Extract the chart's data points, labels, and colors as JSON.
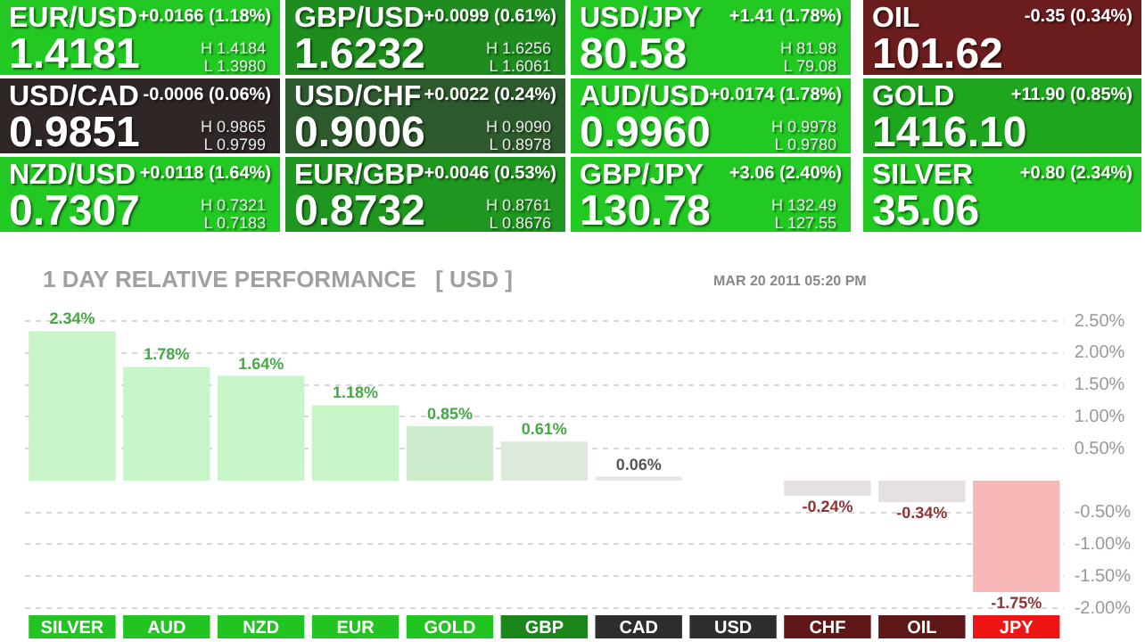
{
  "chart_data": [
    {
      "type": "other",
      "categories": [
        "EUR/USD",
        "GBP/USD",
        "USD/JPY",
        "OIL",
        "USD/CAD",
        "USD/CHF",
        "AUD/USD",
        "GOLD",
        "NZD/USD",
        "EUR/GBP",
        "GBP/JPY",
        "SILVER"
      ],
      "value_labels": [
        "1.4181",
        "1.6232",
        "80.58",
        "101.62",
        "0.9851",
        "0.9006",
        "0.9960",
        "1416.10",
        "0.7307",
        "0.8732",
        "130.78",
        "35.06"
      ],
      "colors": [
        "#22c922",
        "#1e8c1e",
        "#22c922",
        "#6b1c1c",
        "#2f2626",
        "#2d5a2d",
        "#22c922",
        "#1fa61f",
        "#22c922",
        "#1f961f",
        "#22c922",
        "#22c922"
      ],
      "annotations": [
        "+0.0166 (1.18%)",
        "H 1.4184",
        "L 1.3980",
        "+0.0099 (0.61%)",
        "H 1.6256",
        "L 1.6061",
        "+1.41 (1.78%)",
        "H 81.98",
        "L 79.08",
        "-0.35 (0.34%)",
        "-0.0006 (0.06%)",
        "H 0.9865",
        "L 0.9799",
        "+0.0022 (0.24%)",
        "H 0.9090",
        "L 0.8978",
        "+0.0174 (1.78%)",
        "H 0.9978",
        "L 0.9780",
        "+11.90 (0.85%)",
        "+0.0118 (1.64%)",
        "H 0.7321",
        "L 0.7183",
        "+0.0046 (0.53%)",
        "H 0.8761",
        "L 0.8676",
        "+3.06 (2.40%)",
        "H 132.49",
        "L 127.55",
        "+0.80 (2.34%)"
      ]
    },
    {
      "type": "bar",
      "title": "1 DAY RELATIVE PERFORMANCE   [ USD ]",
      "annotations": [
        "MAR 20 2011 05:20 PM"
      ],
      "categories": [
        "SILVER",
        "AUD",
        "NZD",
        "EUR",
        "GOLD",
        "GBP",
        "CAD",
        "USD",
        "CHF",
        "OIL",
        "JPY"
      ],
      "values": [
        2.34,
        1.78,
        1.64,
        1.18,
        0.85,
        0.61,
        0.06,
        0,
        -0.24,
        -0.34,
        -1.75
      ],
      "value_labels": [
        "2.34%",
        "1.78%",
        "1.64%",
        "1.18%",
        "0.85%",
        "0.61%",
        "0.06%",
        null,
        "-0.24%",
        "-0.34%",
        "-1.75%"
      ],
      "colors": [
        "#c8f5c8",
        "#c8f5c8",
        "#c8f5c8",
        "#c8f5c8",
        "#cdeccd",
        "#dce9dc",
        "#e6e6e6",
        "#e6e6e6",
        "#e6e0e0",
        "#e6e0e0",
        "#f8b8b8"
      ],
      "ylim": [
        -2,
        2.5
      ],
      "yticks": [
        {
          "value": 2.5,
          "label": "2.50%"
        },
        {
          "value": 2,
          "label": "2.00%"
        },
        {
          "value": 1.5,
          "label": "1.50%"
        },
        {
          "value": 1,
          "label": "1.00%"
        },
        {
          "value": 0.5,
          "label": "0.50%"
        },
        {
          "value": -0.5,
          "label": "-0.50%"
        },
        {
          "value": -1,
          "label": "-1.00%"
        },
        {
          "value": -1.5,
          "label": "-1.50%"
        },
        {
          "value": -2,
          "label": "-2.00%"
        }
      ],
      "grid": "y"
    }
  ]
}
